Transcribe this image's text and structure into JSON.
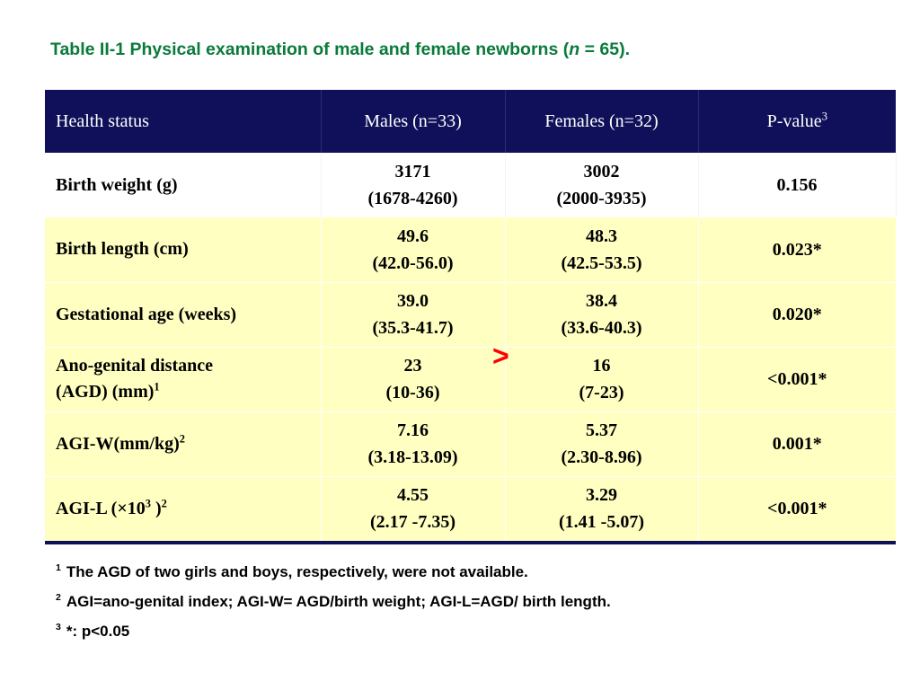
{
  "title": {
    "prefix": "Table II-1 Physical examination of male and female newborns (",
    "n_symbol": "n",
    "suffix": " = 65)."
  },
  "table": {
    "headers": {
      "health_status": "Health status",
      "males": "Males (n=33)",
      "females": "Females (n=32)",
      "pvalue": "P-value",
      "pvalue_sup": "3"
    },
    "rows": [
      {
        "label": "Birth weight (g)",
        "label_sup": "",
        "label_tail": "",
        "males_val": "3171",
        "males_range": "(1678-4260)",
        "females_val": "3002",
        "females_range": "(2000-3935)",
        "p": "0.156"
      },
      {
        "label": "Birth length (cm)",
        "label_sup": "",
        "label_tail": "",
        "males_val": "49.6",
        "males_range": "(42.0-56.0)",
        "females_val": "48.3",
        "females_range": "(42.5-53.5)",
        "p": "0.023*"
      },
      {
        "label": "Gestational age (weeks)",
        "label_sup": "",
        "label_tail": "",
        "males_val": "39.0",
        "males_range": "(35.3-41.7)",
        "females_val": "38.4",
        "females_range": "(33.6-40.3)",
        "p": "0.020*"
      },
      {
        "label": "Ano-genital distance",
        "label_line2": "(AGD) (mm)",
        "label_sup": "1",
        "label_tail": "",
        "males_val": "23",
        "males_range": "(10-36)",
        "females_val": "16",
        "females_range": "(7-23)",
        "p": "<0.001*"
      },
      {
        "label": "AGI-W(mm/kg)",
        "label_sup": "2",
        "label_tail": "",
        "males_val": "7.16",
        "males_range": "(3.18-13.09)",
        "females_val": "5.37",
        "females_range": "(2.30-8.96)",
        "p": "0.001*"
      },
      {
        "label": "AGI-L (×10",
        "label_sup": "3",
        "label_tail": " )",
        "label_sup2": "2",
        "males_val": "4.55",
        "males_range": "(2.17 -7.35)",
        "females_val": "3.29",
        "females_range": "(1.41 -5.07)",
        "p": "<0.001*"
      }
    ]
  },
  "comparison_symbol": ">",
  "footnotes": [
    {
      "sup": "1",
      "text": "The AGD of two girls and boys, respectively, were not available."
    },
    {
      "sup": "2",
      "text": "AGI=ano-genital index; AGI-W= AGD/birth weight; AGI-L=AGD/ birth length."
    },
    {
      "sup": "3",
      "text": "*: p<0.05"
    }
  ],
  "colors": {
    "title": "#0a7a3a",
    "header_bg": "#10105a",
    "row_highlight": "#ffffc2",
    "comparison_symbol": "#ff0000"
  }
}
